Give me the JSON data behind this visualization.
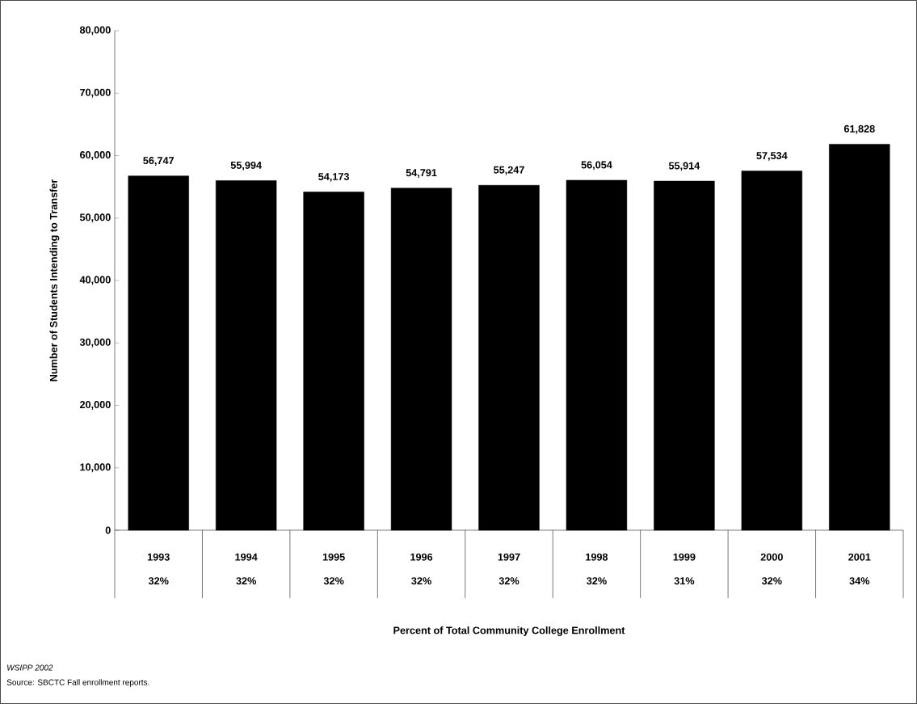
{
  "chart_data": {
    "type": "bar",
    "categories": [
      "1993",
      "1994",
      "1995",
      "1996",
      "1997",
      "1998",
      "1999",
      "2000",
      "2001"
    ],
    "values": [
      56747,
      55994,
      54173,
      54791,
      55247,
      56054,
      55914,
      57534,
      61828
    ],
    "value_labels": [
      "56,747",
      "55,994",
      "54,173",
      "54,791",
      "55,247",
      "56,054",
      "55,914",
      "57,534",
      "61,828"
    ],
    "color": "#000000",
    "ylim": [
      0,
      80000
    ],
    "yticks": [
      0,
      {
        "value": 10000,
        "label": "10,000"
      },
      {
        "value": 20000,
        "label": "20,000"
      },
      {
        "value": 30000,
        "label": "30,000"
      },
      {
        "value": 40000,
        "label": "40,000"
      },
      {
        "value": 50000,
        "label": "50,000"
      },
      {
        "value": 60000,
        "label": "60,000"
      },
      {
        "value": 70000,
        "label": "70,000"
      },
      {
        "value": 80000,
        "label": "80,000"
      }
    ],
    "ylabel": "Number of Students Intending to Transfer",
    "grid": false,
    "annotations": [
      "32%",
      "32%",
      "32%",
      "32%",
      "32%",
      "32%",
      "31%",
      "32%",
      "34%",
      "Percent of Total Community College Enrollment",
      "*WSIPP 2002*",
      "Source:  SBCTC Fall enrollment reports."
    ]
  }
}
